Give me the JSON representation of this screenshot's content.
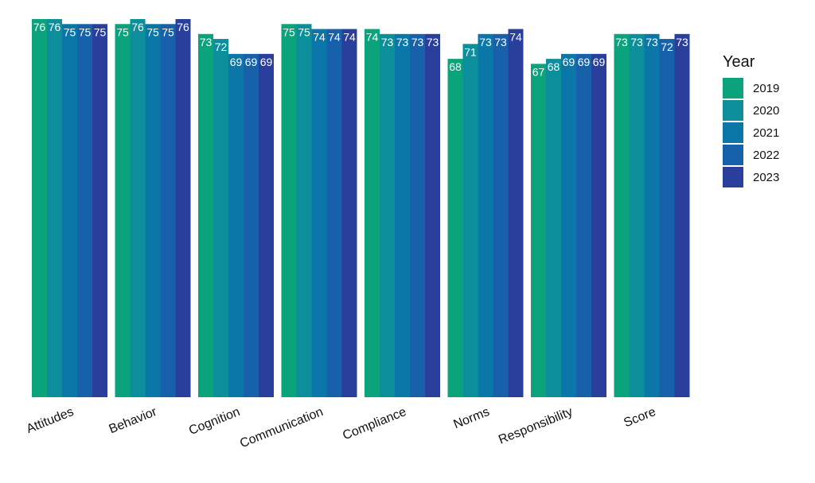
{
  "chart_data": {
    "type": "bar",
    "categories": [
      "Attitudes",
      "Behavior",
      "Cognition",
      "Communication",
      "Compliance",
      "Norms",
      "Responsibility",
      "Score"
    ],
    "series": [
      {
        "name": "2019",
        "color": "#0aa37c",
        "values": [
          76,
          75,
          73,
          75,
          74,
          68,
          67,
          73
        ]
      },
      {
        "name": "2020",
        "color": "#0c8f9a",
        "values": [
          76,
          76,
          72,
          75,
          73,
          71,
          68,
          73
        ]
      },
      {
        "name": "2021",
        "color": "#0a77a8",
        "values": [
          75,
          75,
          69,
          74,
          73,
          73,
          69,
          73
        ]
      },
      {
        "name": "2022",
        "color": "#1661aa",
        "values": [
          75,
          75,
          69,
          74,
          73,
          73,
          69,
          72
        ]
      },
      {
        "name": "2023",
        "color": "#2a3f9c",
        "values": [
          75,
          76,
          69,
          74,
          73,
          74,
          69,
          73
        ]
      }
    ],
    "ylim": [
      0,
      76
    ],
    "legend": {
      "title": "Year",
      "placement": "right"
    },
    "grid": false
  }
}
